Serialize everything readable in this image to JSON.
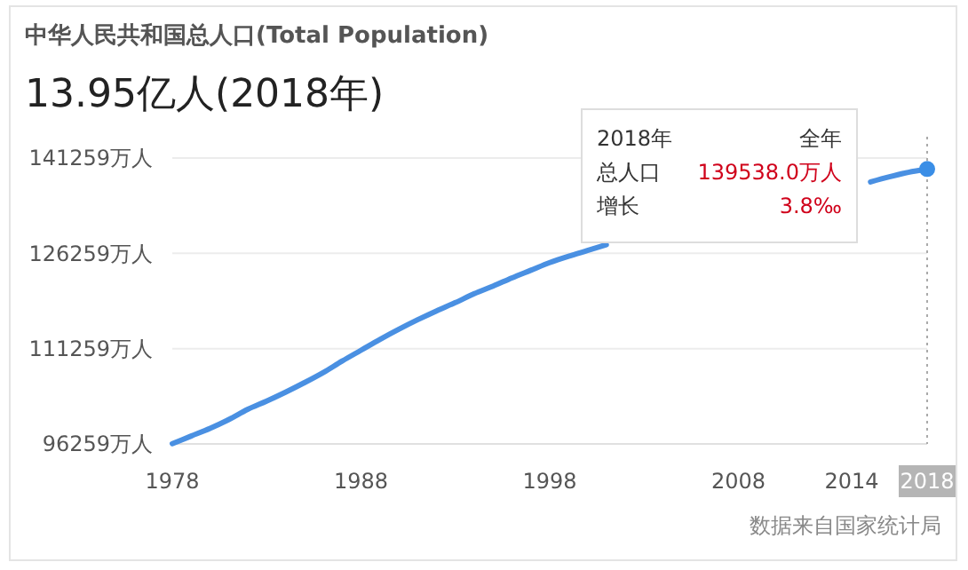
{
  "chart_data": {
    "type": "line",
    "title": "中华人民共和国总人口(Total Population)",
    "subtitle": "13.95亿人(2018年)",
    "x": [
      1978,
      1979,
      1980,
      1981,
      1982,
      1983,
      1984,
      1985,
      1986,
      1987,
      1988,
      1989,
      1990,
      1991,
      1992,
      1993,
      1994,
      1995,
      1996,
      1997,
      1998,
      1999,
      2000,
      2001,
      2002,
      2003,
      2004,
      2005,
      2006,
      2007,
      2008,
      2009,
      2010,
      2011,
      2012,
      2013,
      2014,
      2015,
      2016,
      2017,
      2018
    ],
    "series": [
      {
        "color": "#4a90e2",
        "values": [
          96300,
          97500,
          98700,
          100100,
          101700,
          103000,
          104400,
          105900,
          107500,
          109300,
          111000,
          112700,
          114300,
          115800,
          117200,
          118500,
          119900,
          121100,
          122400,
          123600,
          124800,
          125800,
          126700,
          127600,
          null,
          null,
          null,
          null,
          null,
          null,
          null,
          null,
          null,
          null,
          null,
          null,
          null,
          137500,
          138300,
          139000,
          139500
        ]
      },
      {
        "type": "scatter",
        "color": "#3a8ee6",
        "marker": "circle",
        "x": [
          2018
        ],
        "values": [
          139538
        ]
      }
    ],
    "xlim": [
      1978,
      2018
    ],
    "xticks": [
      1978,
      1988,
      1998,
      2008,
      2014,
      2018
    ],
    "ylim": [
      96259,
      141259
    ],
    "yticks": [
      {
        "value": 96259,
        "label": "96259万人"
      },
      {
        "value": 111259,
        "label": "111259万人"
      },
      {
        "value": 126259,
        "label": "126259万人"
      },
      {
        "value": 141259,
        "label": "141259万人"
      }
    ],
    "grid": "y",
    "marker": "none",
    "ref_lines": [
      {
        "axis": "x",
        "value": 2018,
        "line_style": "dotted",
        "color": "#aaaaaa"
      }
    ],
    "annotations": [
      "2018年",
      "全年",
      "总人口",
      "139538.0万人",
      "增长",
      "3.8‰",
      "数据来自国家统计局"
    ]
  }
}
